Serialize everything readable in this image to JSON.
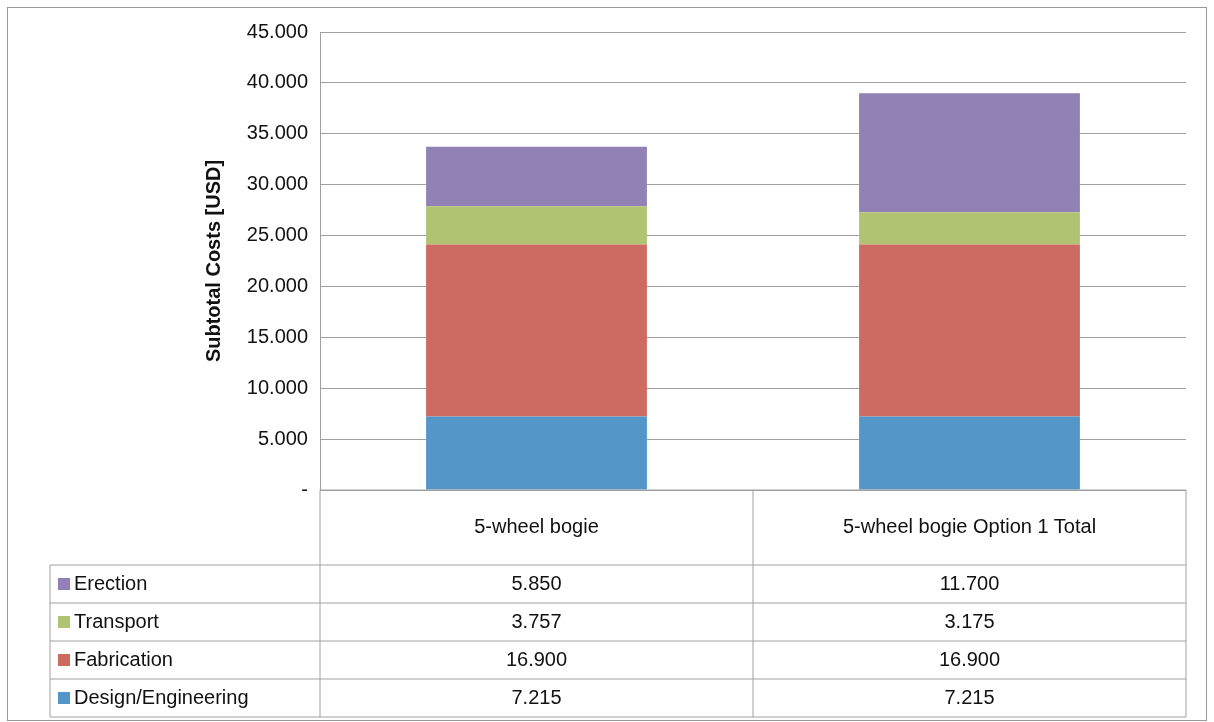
{
  "chart_data": {
    "type": "bar",
    "stacked": true,
    "ylabel": "Subtotal Costs [USD]",
    "categories": [
      "5-wheel bogie",
      "5-wheel bogie Option 1 Total"
    ],
    "series": [
      {
        "name": "Design/Engineering",
        "color": "#5596c8",
        "values": [
          7215,
          7215
        ],
        "value_labels": [
          "7.215",
          "7.215"
        ]
      },
      {
        "name": "Fabrication",
        "color": "#cd6b63",
        "values": [
          16900,
          16900
        ],
        "value_labels": [
          "16.900",
          "16.900"
        ]
      },
      {
        "name": "Transport",
        "color": "#afc373",
        "values": [
          3757,
          3175
        ],
        "value_labels": [
          "3.757",
          "3.175"
        ]
      },
      {
        "name": "Erection",
        "color": "#9181b4",
        "values": [
          5850,
          11700
        ],
        "value_labels": [
          "5.850",
          "11.700"
        ]
      }
    ],
    "ylim": [
      0,
      45000
    ],
    "yticks": [
      {
        "value": 0,
        "label": "-"
      },
      {
        "value": 5000,
        "label": "5.000"
      },
      {
        "value": 10000,
        "label": "10.000"
      },
      {
        "value": 15000,
        "label": "15.000"
      },
      {
        "value": 20000,
        "label": "20.000"
      },
      {
        "value": 25000,
        "label": "25.000"
      },
      {
        "value": 30000,
        "label": "30.000"
      },
      {
        "value": 35000,
        "label": "35.000"
      },
      {
        "value": 40000,
        "label": "40.000"
      },
      {
        "value": 45000,
        "label": "45.000"
      }
    ],
    "grid": "y",
    "legend": "bottom"
  }
}
